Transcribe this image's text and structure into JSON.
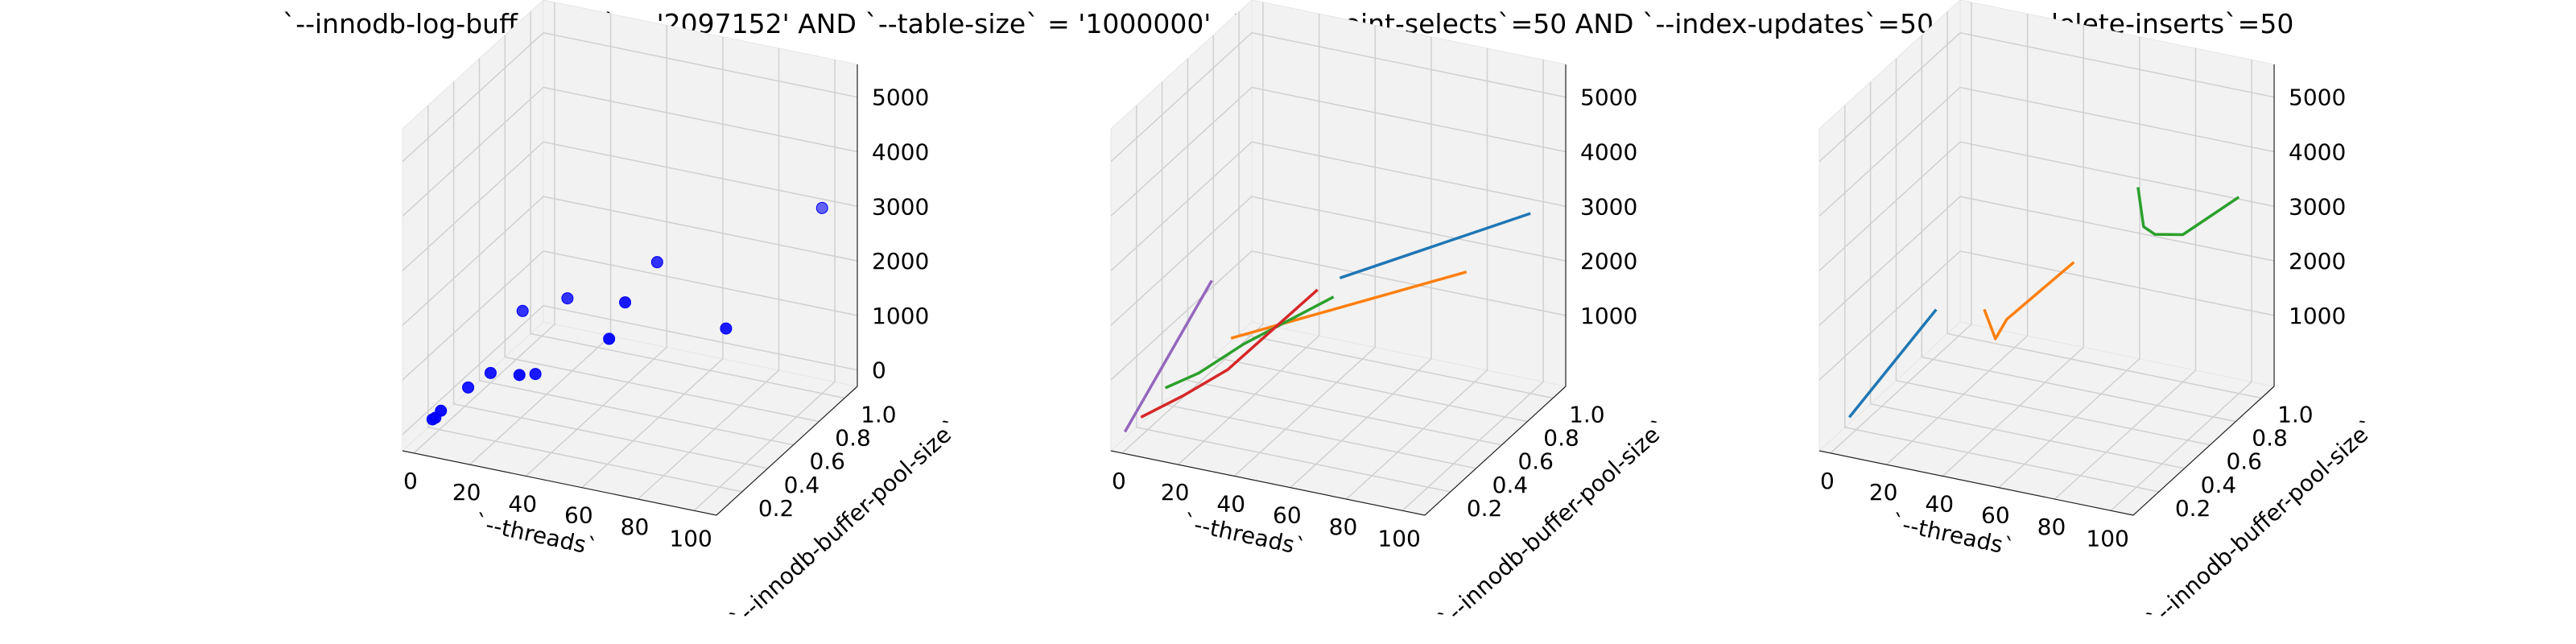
{
  "figure": {
    "title": "`--innodb-log-buffer-size` = '2097152' AND `--table-size` = '1000000'  AND `--point-selects`=50 AND `--index-updates`=50 AND `--delete-inserts`=50"
  },
  "colors": {
    "pane": "#f2f2f2",
    "grid": "#d0d0d0",
    "scatter": "#0000ff",
    "lines": [
      "#1f77b4",
      "#ff7f0e",
      "#2ca02c",
      "#d62728",
      "#9467bd"
    ]
  },
  "chart_data": [
    {
      "type": "scatter",
      "projection": "3d",
      "xlabel": "`--threads`",
      "ylabel": "`--innodb-buffer-pool-size`",
      "zlabel": "",
      "xlim": [
        -4,
        108
      ],
      "ylim": [
        0,
        1.1
      ],
      "zlim": [
        -300,
        5600
      ],
      "xticks": [
        "0",
        "20",
        "40",
        "60",
        "80",
        "100"
      ],
      "yticks": [
        "0.2",
        "0.4",
        "0.6",
        "0.8",
        "1.0"
      ],
      "zticks": [
        "0",
        "1000",
        "2000",
        "3000",
        "4000",
        "5000"
      ],
      "grid": true,
      "points": [
        {
          "x": 1,
          "y": 0.125,
          "z": 60
        },
        {
          "x": 2,
          "y": 0.125,
          "z": 100
        },
        {
          "x": 4,
          "y": 0.125,
          "z": 250
        },
        {
          "x": 8,
          "y": 0.25,
          "z": 450
        },
        {
          "x": 16,
          "y": 0.25,
          "z": 800
        },
        {
          "x": 32,
          "y": 0.125,
          "z": 1200
        },
        {
          "x": 32,
          "y": 0.25,
          "z": 950
        },
        {
          "x": 16,
          "y": 0.5,
          "z": 1400
        },
        {
          "x": 32,
          "y": 0.5,
          "z": 1800
        },
        {
          "x": 64,
          "y": 0.5,
          "z": 2800
        },
        {
          "x": 64,
          "y": 0.25,
          "z": 2600
        },
        {
          "x": 64,
          "y": 0.125,
          "z": 2200
        },
        {
          "x": 100,
          "y": 0.25,
          "z": 2500
        },
        {
          "x": 100,
          "y": 1.0,
          "z": 3100
        }
      ]
    },
    {
      "type": "line",
      "projection": "3d",
      "xlabel": "`--threads`",
      "ylabel": "`--innodb-buffer-pool-size`",
      "zlabel": "",
      "xlim": [
        -4,
        108
      ],
      "ylim": [
        0,
        1.1
      ],
      "zlim": [
        -300,
        5600
      ],
      "xticks": [
        "0",
        "20",
        "40",
        "60",
        "80",
        "100"
      ],
      "yticks": [
        "0.2",
        "0.4",
        "0.6",
        "0.8",
        "1.0"
      ],
      "zticks": [
        "1000",
        "2000",
        "3000",
        "4000",
        "5000"
      ],
      "grid": true,
      "series": [
        {
          "x": [
            32,
            100
          ],
          "y": [
            1.0,
            1.0
          ],
          "z": [
            1100,
            3000
          ]
        },
        {
          "x": [
            16,
            100
          ],
          "y": [
            0.5,
            0.5
          ],
          "z": [
            900,
            3000
          ]
        },
        {
          "x": [
            4,
            16,
            32,
            64
          ],
          "y": [
            0.25,
            0.25,
            0.25,
            0.25
          ],
          "z": [
            400,
            800,
            1500,
            2700
          ]
        },
        {
          "x": [
            1,
            16,
            32,
            64
          ],
          "y": [
            0.125,
            0.125,
            0.125,
            0.125
          ],
          "z": [
            100,
            650,
            1300,
            3100
          ]
        },
        {
          "x": [
            1,
            32
          ],
          "y": [
            0.0,
            0.0
          ],
          "z": [
            100,
            3200
          ]
        }
      ]
    },
    {
      "type": "line",
      "projection": "3d",
      "xlabel": "`--threads`",
      "ylabel": "`--innodb-buffer-pool-size`",
      "zlabel": "",
      "xlim": [
        -4,
        108
      ],
      "ylim": [
        0,
        1.1
      ],
      "zlim": [
        -300,
        5600
      ],
      "xticks": [
        "0",
        "20",
        "40",
        "60",
        "80",
        "100"
      ],
      "yticks": [
        "0.2",
        "0.4",
        "0.6",
        "0.8",
        "1.0"
      ],
      "zticks": [
        "1000",
        "2000",
        "3000",
        "4000",
        "5000"
      ],
      "grid": true,
      "series": [
        {
          "x": [
            1,
            32
          ],
          "y": [
            0.125,
            0.125
          ],
          "z": [
            100,
            2400
          ]
        },
        {
          "x": [
            32,
            36,
            40,
            64
          ],
          "y": [
            0.5,
            0.5,
            0.5,
            0.5
          ],
          "z": [
            1600,
            1100,
            1500,
            2800
          ]
        },
        {
          "x": [
            64,
            66,
            70,
            80,
            100
          ],
          "y": [
            1.0,
            1.0,
            1.0,
            1.0,
            1.0
          ],
          "z": [
            3100,
            2400,
            2300,
            2400,
            3300
          ]
        }
      ]
    }
  ]
}
